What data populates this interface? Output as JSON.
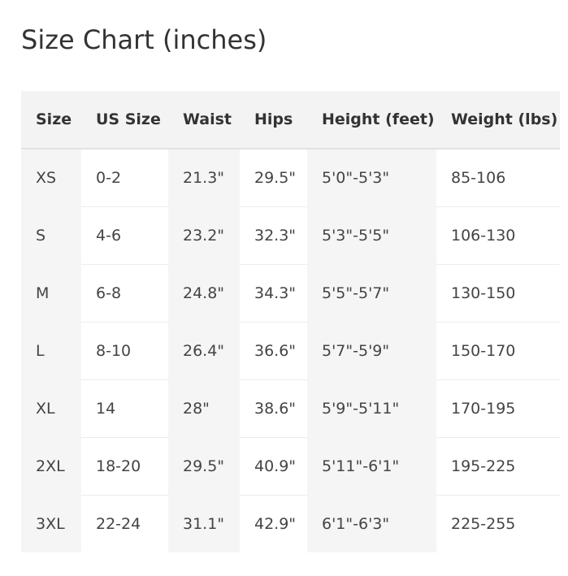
{
  "title": "Size Chart (inches)",
  "table": {
    "header": [
      "Size",
      "US Size",
      "Waist",
      "Hips",
      "Height (feet)",
      "Weight (lbs)"
    ],
    "rows": [
      [
        "XS",
        "0-2",
        "21.3\"",
        "29.5\"",
        "5'0\"-5'3\"",
        "85-106"
      ],
      [
        "S",
        "4-6",
        "23.2\"",
        "32.3\"",
        "5'3\"-5'5\"",
        "106-130"
      ],
      [
        "M",
        "6-8",
        "24.8\"",
        "34.3\"",
        "5'5\"-5'7\"",
        "130-150"
      ],
      [
        "L",
        "8-10",
        "26.4\"",
        "36.6\"",
        "5'7\"-5'9\"",
        "150-170"
      ],
      [
        "XL",
        "14",
        "28\"",
        "38.6\"",
        "5'9\"-5'11\"",
        "170-195"
      ],
      [
        "2XL",
        "18-20",
        "29.5\"",
        "40.9\"",
        "5'11\"-6'1\"",
        "195-225"
      ],
      [
        "3XL",
        "22-24",
        "31.1\"",
        "42.9\"",
        "6'1\"-6'3\"",
        "225-255"
      ]
    ]
  }
}
